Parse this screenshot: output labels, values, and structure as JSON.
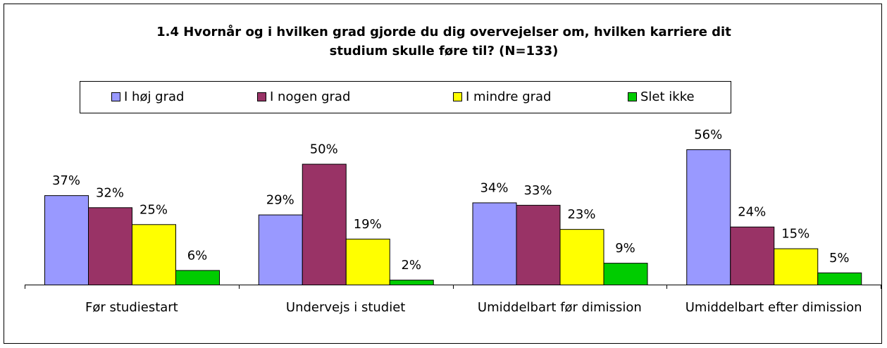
{
  "chart_data": {
    "type": "bar",
    "title": "1.4 Hvornår og i hvilken grad gjorde du dig overvejelser om, hvilken karriere dit studium skulle føre til? (N=133)",
    "categories": [
      "Før studiestart",
      "Undervejs i studiet",
      "Umiddelbart før dimission",
      "Umiddelbart efter dimission"
    ],
    "series": [
      {
        "name": "I høj grad",
        "color": "#9999ff",
        "values": [
          37,
          29,
          34,
          56
        ],
        "value_labels": [
          "37%",
          "29%",
          "34%",
          "56%"
        ]
      },
      {
        "name": "I nogen grad",
        "color": "#993366",
        "values": [
          32,
          50,
          33,
          24
        ],
        "value_labels": [
          "32%",
          "50%",
          "33%",
          "24%"
        ]
      },
      {
        "name": "I mindre grad",
        "color": "#ffff00",
        "values": [
          25,
          19,
          23,
          15
        ],
        "value_labels": [
          "25%",
          "19%",
          "23%",
          "15%"
        ]
      },
      {
        "name": "Slet ikke",
        "color": "#00cc00",
        "values": [
          6,
          2,
          9,
          5
        ],
        "value_labels": [
          "6%",
          "2%",
          "9%",
          "5%"
        ]
      }
    ],
    "legend": "top"
  }
}
